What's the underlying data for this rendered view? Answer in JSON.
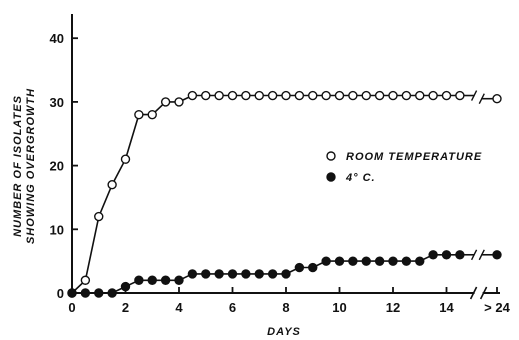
{
  "chart_data": {
    "type": "line",
    "xlabel": "DAYS",
    "ylabel_line1": "NUMBER  OF  ISOLATES",
    "ylabel_line2": "SHOWING  OVERGROWTH",
    "xlim": [
      0,
      16
    ],
    "ylim": [
      0,
      40
    ],
    "x_ticks": [
      0,
      2,
      4,
      6,
      8,
      10,
      12,
      14
    ],
    "x_tick_labels": [
      "0",
      "2",
      "4",
      "6",
      "8",
      "10",
      "12",
      "14"
    ],
    "x_break_label": "> 24",
    "y_ticks": [
      0,
      10,
      20,
      30,
      40
    ],
    "y_tick_labels": [
      "0",
      "10",
      "20",
      "30",
      "40"
    ],
    "legend_position": "right",
    "series": [
      {
        "name": "ROOM  TEMPERATURE",
        "marker": "open-circle",
        "color": "#111111",
        "x": [
          0,
          0.5,
          1,
          1.5,
          2,
          2.5,
          3,
          3.5,
          4,
          4.5,
          5,
          5.5,
          6,
          6.5,
          7,
          7.5,
          8,
          8.5,
          9,
          9.5,
          10,
          10.5,
          11,
          11.5,
          12,
          12.5,
          13,
          13.5,
          14,
          14.5
        ],
        "y": [
          0,
          2,
          12,
          17,
          21,
          28,
          28,
          30,
          30,
          31,
          31,
          31,
          31,
          31,
          31,
          31,
          31,
          31,
          31,
          31,
          31,
          31,
          31,
          31,
          31,
          31,
          31,
          31,
          31,
          31
        ],
        "after_break_value": 30.5
      },
      {
        "name": "4° C.",
        "marker": "filled-circle",
        "color": "#111111",
        "x": [
          0,
          0.5,
          1,
          1.5,
          2,
          2.5,
          3,
          3.5,
          4,
          4.5,
          5,
          5.5,
          6,
          6.5,
          7,
          7.5,
          8,
          8.5,
          9,
          9.5,
          10,
          10.5,
          11,
          11.5,
          12,
          12.5,
          13,
          13.5,
          14,
          14.5
        ],
        "y": [
          0,
          0,
          0,
          0,
          1,
          2,
          2,
          2,
          2,
          3,
          3,
          3,
          3,
          3,
          3,
          3,
          3,
          4,
          4,
          5,
          5,
          5,
          5,
          5,
          5,
          5,
          5,
          6,
          6,
          6
        ],
        "after_break_value": 6
      }
    ]
  }
}
